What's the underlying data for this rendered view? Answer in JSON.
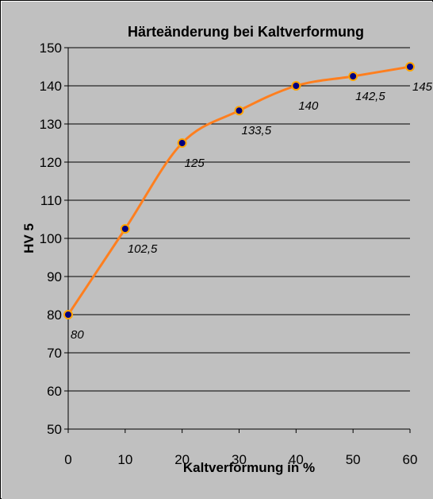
{
  "chart_data": {
    "type": "line",
    "title": "Härteänderung bei Kaltverformung",
    "xlabel": "Kaltverformung in %",
    "ylabel": "HV 5",
    "x": [
      0,
      10,
      20,
      30,
      40,
      50,
      60
    ],
    "xlim": [
      0,
      60
    ],
    "ylim": [
      50,
      150
    ],
    "xticks": [
      "0",
      "10",
      "20",
      "30",
      "40",
      "50",
      "60"
    ],
    "yticks": [
      "50",
      "60",
      "70",
      "80",
      "90",
      "100",
      "110",
      "120",
      "130",
      "140",
      "150"
    ],
    "series": [
      {
        "values": [
          80,
          102.5,
          125,
          133.5,
          140,
          142.5,
          145
        ],
        "labels": [
          "80",
          "102,5",
          "125",
          "133,5",
          "140",
          "142,5",
          "145"
        ],
        "line_color": "#ff7f1f",
        "marker_fill": "#000080",
        "marker_edge": "#ffa500"
      }
    ],
    "grid": true,
    "smoothed": true,
    "legend": "none",
    "colors": {
      "background": "#c0c0c0",
      "gridline": "#000000"
    }
  }
}
